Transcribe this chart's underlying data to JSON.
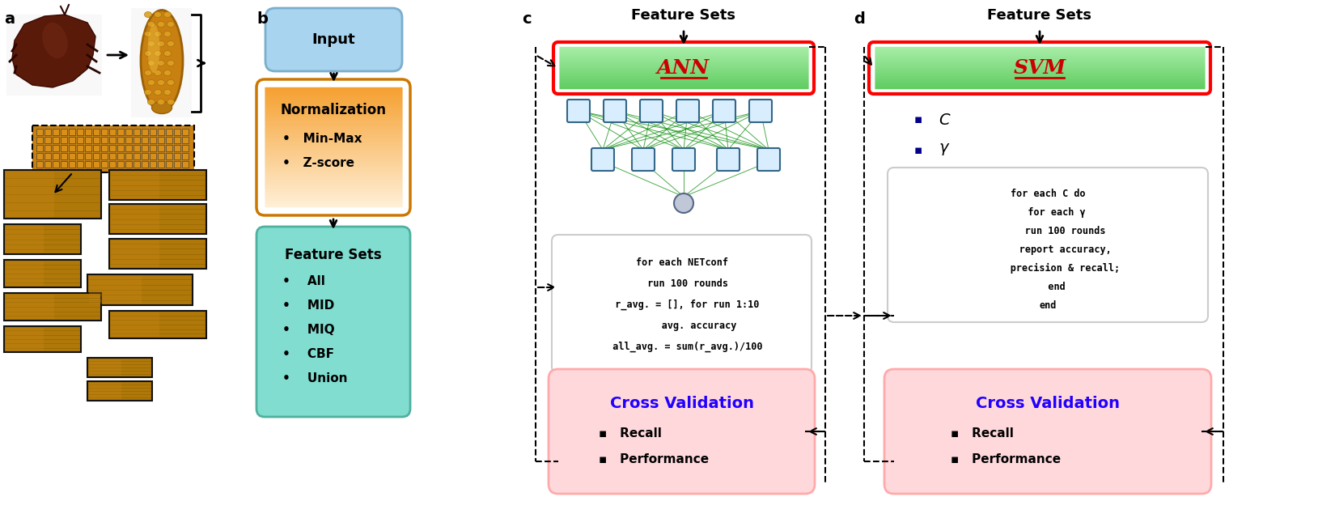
{
  "input_text": "Input",
  "normalization_text": "Normalization",
  "norm_bullets": [
    "Min-Max",
    "Z-score"
  ],
  "feature_sets_text": "Feature Sets",
  "feature_bullets": [
    "All",
    "MID",
    "MIQ",
    "CBF",
    "Union"
  ],
  "ann_label": "ANN",
  "svm_label": "SVM",
  "ann_code_lines": [
    "for each NETconf",
    "  run 100 rounds",
    "  r_avg. = [], for run 1:10",
    "      avg. accuracy",
    "  all_avg. = sum(r_avg.)/100"
  ],
  "svm_code_lines": [
    "for each C do",
    "   for each γ",
    "      run 100 rounds",
    "      report accuracy,",
    "      precision & recall;",
    "   end",
    "end"
  ],
  "cross_val_text": "Cross Validation",
  "cross_val_bullets": [
    "Recall",
    "Performance"
  ],
  "feature_sets_label_c": "Feature Sets",
  "feature_sets_label_d": "Feature Sets",
  "svm_params": [
    "C",
    "γ"
  ],
  "panel_labels": [
    "a",
    "b",
    "c",
    "d"
  ],
  "bg_color": "#FFFFFF",
  "input_box_color": "#A8D4F0",
  "input_box_edge": "#7AAECC",
  "norm_box_color_top": "#F5A030",
  "norm_box_color_bot": "#FFF0D8",
  "feat_box_color": "#80DDD0",
  "feat_box_edge": "#50B0A0",
  "ann_box_color": "#88DD88",
  "ann_box_edge": "#FF0000",
  "svm_box_color": "#88DD88",
  "svm_box_edge": "#FF0000",
  "code_box_color": "#FFF5F5",
  "code_box_edge": "#CCCCCC",
  "cv_box_color": "#FFD8DC",
  "cv_box_edge": "#FFAAAA",
  "cv_text_color": "#2200FF",
  "ann_text_color": "#CC0000",
  "svm_text_color": "#CC0000",
  "arrow_color": "#000000",
  "dashed_color": "#000000",
  "patch_color": "#B08010",
  "patch_edge": "#222222",
  "nn_node_color": "#D8EEFF",
  "nn_node_edge": "#336688",
  "nn_line_color": "#008800",
  "output_node_color": "#C0C8D8"
}
